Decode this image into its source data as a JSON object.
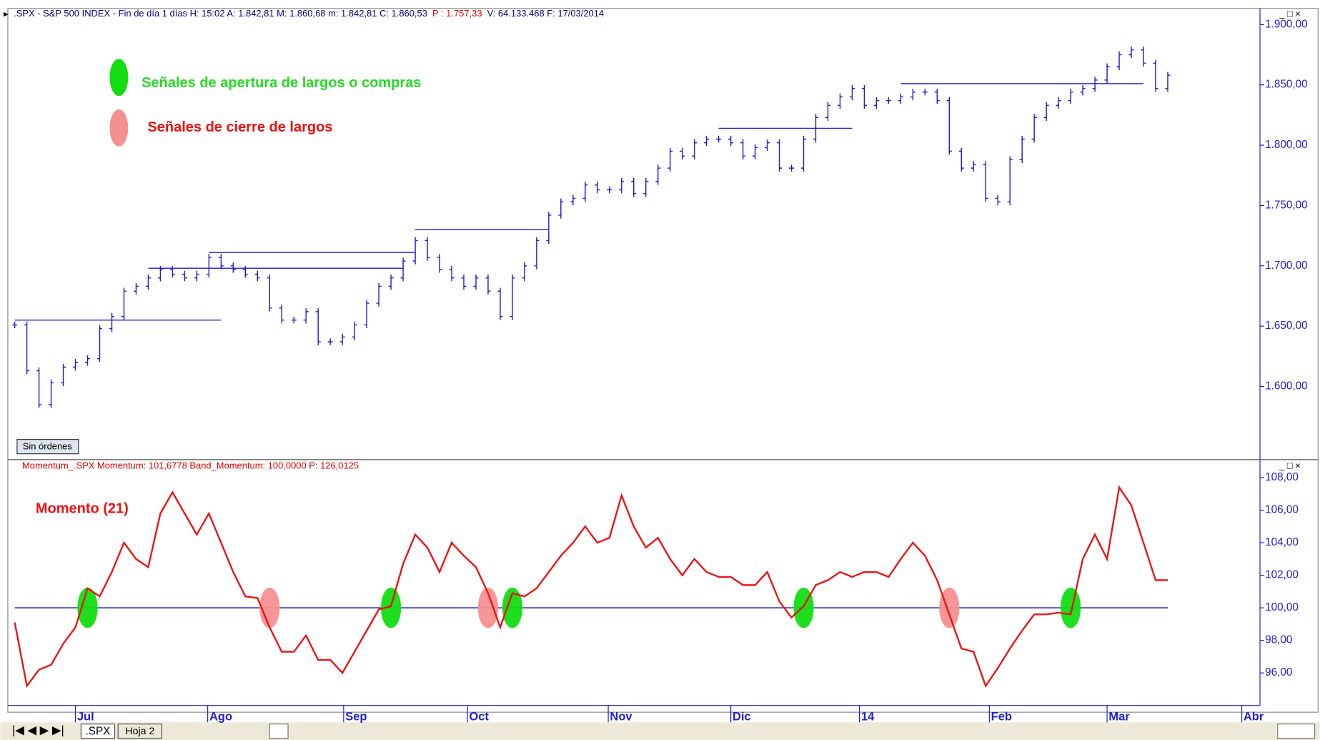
{
  "chart_data": [
    {
      "type": "bar-line",
      "header": [
        ".SPX - S&P 500 INDEX - Fin de día 1 días  H: 15:02  A: 1.842,81  M: 1.860,68  m: 1.842,81  C: 1.860,53",
        "P : 1.757,33",
        "V: 64.133.468  F: 17/03/2014"
      ],
      "header_colors": [
        "#000080",
        "#e00000",
        "#000080"
      ],
      "legend": [
        {
          "name": "Señales de apertura de largos o compras",
          "color": "#22dd22"
        },
        {
          "name": "Señales de cierre de largos",
          "color": "#ee1111"
        }
      ],
      "legend_marker_colors": [
        "#11dd11",
        "#f59090"
      ],
      "badge": "Sin órdenes",
      "color": "#1c1cd0",
      "values": [
        1651,
        1613,
        1585,
        1603,
        1616,
        1620,
        1623,
        1648,
        1658,
        1679,
        1683,
        1690,
        1697,
        1693,
        1690,
        1693,
        1707,
        1700,
        1697,
        1693,
        1690,
        1665,
        1655,
        1655,
        1662,
        1637,
        1637,
        1641,
        1651,
        1669,
        1683,
        1690,
        1704,
        1721,
        1707,
        1697,
        1690,
        1683,
        1690,
        1679,
        1658,
        1690,
        1700,
        1721,
        1742,
        1753,
        1756,
        1767,
        1763,
        1763,
        1770,
        1760,
        1770,
        1781,
        1795,
        1791,
        1802,
        1805,
        1805,
        1802,
        1791,
        1798,
        1802,
        1781,
        1781,
        1805,
        1823,
        1833,
        1840,
        1847,
        1833,
        1837,
        1837,
        1840,
        1844,
        1844,
        1837,
        1795,
        1781,
        1784,
        1756,
        1753,
        1788,
        1805,
        1823,
        1833,
        1837,
        1844,
        1847,
        1854,
        1865,
        1875,
        1879,
        1868,
        1847,
        1858
      ],
      "levels": [
        {
          "value": 1655,
          "from": 0,
          "to": 17
        },
        {
          "value": 1698,
          "from": 11,
          "to": 32
        },
        {
          "value": 1711,
          "from": 16,
          "to": 33
        },
        {
          "value": 1730,
          "from": 33,
          "to": 44
        },
        {
          "value": 1814,
          "from": 58,
          "to": 69
        },
        {
          "value": 1851,
          "from": 73,
          "to": 93
        }
      ],
      "xlim": [
        -0.5,
        102.6
      ],
      "ylim": [
        1540,
        1905
      ],
      "yticks": [
        {
          "value": 1600,
          "label": "1.600,00"
        },
        {
          "value": 1650,
          "label": "1.650,00"
        },
        {
          "value": 1700,
          "label": "1.700,00"
        },
        {
          "value": 1750,
          "label": "1.750,00"
        },
        {
          "value": 1800,
          "label": "1.800,00"
        },
        {
          "value": 1850,
          "label": "1.850,00"
        },
        {
          "value": 1900,
          "label": "1.900,00"
        }
      ]
    },
    {
      "type": "line",
      "header": "Momentum_.SPX  Momentum: 101,6778  Band_Momentum: 100,0000  P: 126,0125",
      "annotation": "Momento (21)",
      "color": "#ee1111",
      "values": [
        99.1,
        95.2,
        96.2,
        96.5,
        97.8,
        98.8,
        101.2,
        100.7,
        102.2,
        104,
        103,
        102.5,
        105.8,
        107.1,
        105.8,
        104.5,
        105.8,
        104,
        102.2,
        100.7,
        100.6,
        98.8,
        97.3,
        97.3,
        98.3,
        96.8,
        96.8,
        96,
        97.3,
        98.6,
        99.9,
        100.1,
        102.7,
        104.5,
        103.7,
        102.2,
        104,
        103.2,
        102.5,
        100.9,
        98.8,
        100.9,
        100.7,
        101.2,
        102.2,
        103.2,
        104,
        105,
        104,
        104.3,
        106.9,
        105,
        103.7,
        104.3,
        103,
        102,
        103,
        102.2,
        101.9,
        101.9,
        101.4,
        101.4,
        102.2,
        100.4,
        99.4,
        100.1,
        101.4,
        101.7,
        102.2,
        101.9,
        102.2,
        102.2,
        101.9,
        103,
        104,
        103.2,
        101.7,
        99.6,
        97.5,
        97.3,
        95.2,
        96.3,
        97.5,
        98.6,
        99.6,
        99.6,
        99.7,
        99.6,
        103,
        104.5,
        103,
        107.4,
        106.3,
        104,
        101.7,
        101.7
      ],
      "band": {
        "value": 100,
        "color": "#1c1cd0"
      },
      "buy_signals": [
        6,
        31,
        41,
        65,
        87
      ],
      "sell_signals": [
        21,
        39,
        77
      ],
      "xlim": [
        -0.5,
        102.6
      ],
      "ylim": [
        94,
        109
      ],
      "yticks": [
        {
          "value": 96,
          "label": "96,00"
        },
        {
          "value": 98,
          "label": "98,00"
        },
        {
          "value": 100,
          "label": "100,00"
        },
        {
          "value": 102,
          "label": "102,00"
        },
        {
          "value": 104,
          "label": "104,00"
        },
        {
          "value": 106,
          "label": "106,00"
        },
        {
          "value": 108,
          "label": "108,00"
        }
      ],
      "xticks": [
        {
          "value": 5.0,
          "label": "Jul"
        },
        {
          "value": 15.9,
          "label": "Ago"
        },
        {
          "value": 27.1,
          "label": "Sep"
        },
        {
          "value": 37.3,
          "label": "Oct"
        },
        {
          "value": 48.9,
          "label": "Nov"
        },
        {
          "value": 59.0,
          "label": "Dic"
        },
        {
          "value": 69.6,
          "label": "14"
        },
        {
          "value": 80.3,
          "label": "Feb"
        },
        {
          "value": 90.0,
          "label": "Mar"
        },
        {
          "value": 101.1,
          "label": "Abr"
        }
      ]
    }
  ],
  "tabs": [
    ".SPX",
    "Hoja 2"
  ]
}
